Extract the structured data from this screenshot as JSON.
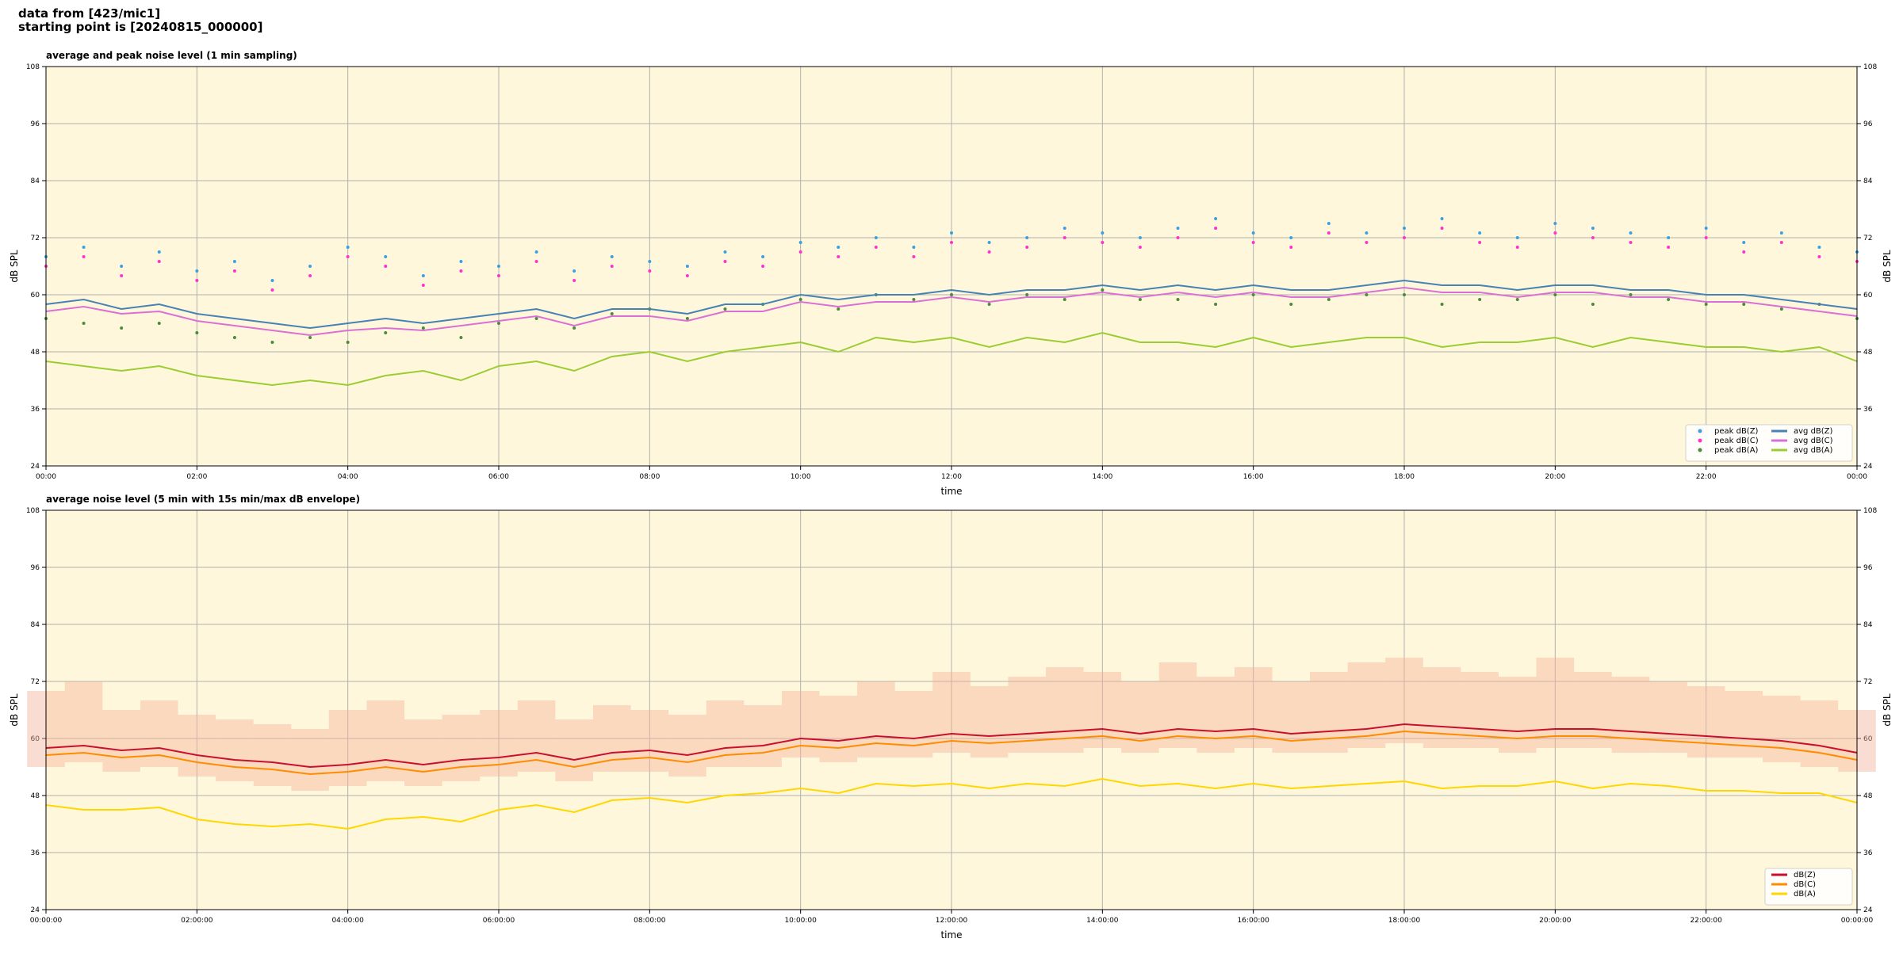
{
  "header": {
    "line1": "data from [423/mic1]",
    "line2": "starting point is [20240815_000000]"
  },
  "chart_data": [
    {
      "type": "line",
      "title": "average and peak noise level (1 min sampling)",
      "xlabel": "time",
      "ylabel": "dB SPL",
      "y2label": "dB SPL",
      "x": [
        0,
        0.5,
        1,
        1.5,
        2,
        2.5,
        3,
        3.5,
        4,
        4.5,
        5,
        5.5,
        6,
        6.5,
        7,
        7.5,
        8,
        8.5,
        9,
        9.5,
        10,
        10.5,
        11,
        11.5,
        12,
        12.5,
        13,
        13.5,
        14,
        14.5,
        15,
        15.5,
        16,
        16.5,
        17,
        17.5,
        18,
        18.5,
        19,
        19.5,
        20,
        20.5,
        21,
        21.5,
        22,
        22.5,
        23,
        23.5,
        24
      ],
      "xlim": [
        0,
        24
      ],
      "xticks": [
        {
          "value": 0,
          "label": "00:00"
        },
        {
          "value": 2,
          "label": "02:00"
        },
        {
          "value": 4,
          "label": "04:00"
        },
        {
          "value": 6,
          "label": "06:00"
        },
        {
          "value": 8,
          "label": "08:00"
        },
        {
          "value": 10,
          "label": "10:00"
        },
        {
          "value": 12,
          "label": "12:00"
        },
        {
          "value": 14,
          "label": "14:00"
        },
        {
          "value": 16,
          "label": "16:00"
        },
        {
          "value": 18,
          "label": "18:00"
        },
        {
          "value": 20,
          "label": "20:00"
        },
        {
          "value": 22,
          "label": "22:00"
        },
        {
          "value": 24,
          "label": "00:00"
        }
      ],
      "ylim": [
        24,
        108
      ],
      "yticks": [
        24,
        36,
        48,
        60,
        72,
        84,
        96,
        108
      ],
      "y2lim": [
        24,
        108
      ],
      "y2ticks": [
        24,
        36,
        48,
        60,
        72,
        84,
        96,
        108
      ],
      "grid": true,
      "legend": "lower right",
      "legend_columns": 2,
      "series": [
        {
          "name": "peak dB(Z)",
          "color": "#3ca0e0",
          "style": "points",
          "values": [
            68,
            70,
            66,
            69,
            65,
            67,
            63,
            66,
            70,
            68,
            64,
            67,
            66,
            69,
            65,
            68,
            67,
            66,
            69,
            68,
            71,
            70,
            72,
            70,
            73,
            71,
            72,
            74,
            73,
            72,
            74,
            76,
            73,
            72,
            75,
            73,
            74,
            76,
            73,
            72,
            75,
            74,
            73,
            72,
            74,
            71,
            73,
            70,
            69
          ]
        },
        {
          "name": "peak dB(C)",
          "color": "#ff33cc",
          "style": "points",
          "values": [
            66,
            68,
            64,
            67,
            63,
            65,
            61,
            64,
            68,
            66,
            62,
            65,
            64,
            67,
            63,
            66,
            65,
            64,
            67,
            66,
            69,
            68,
            70,
            68,
            71,
            69,
            70,
            72,
            71,
            70,
            72,
            74,
            71,
            70,
            73,
            71,
            72,
            74,
            71,
            70,
            73,
            72,
            71,
            70,
            72,
            69,
            71,
            68,
            67
          ]
        },
        {
          "name": "peak dB(A)",
          "color": "#4a8c3a",
          "style": "points",
          "values": [
            55,
            54,
            53,
            54,
            52,
            51,
            50,
            51,
            50,
            52,
            53,
            51,
            54,
            55,
            53,
            56,
            57,
            55,
            57,
            58,
            59,
            57,
            60,
            59,
            60,
            58,
            60,
            59,
            61,
            59,
            59,
            58,
            60,
            58,
            59,
            60,
            60,
            58,
            59,
            59,
            60,
            58,
            60,
            59,
            58,
            58,
            57,
            58,
            55
          ]
        },
        {
          "name": "avg dB(Z)",
          "color": "#4682b4",
          "style": "line",
          "values": [
            58,
            59,
            57,
            58,
            56,
            55,
            54,
            53,
            54,
            55,
            54,
            55,
            56,
            57,
            55,
            57,
            57,
            56,
            58,
            58,
            60,
            59,
            60,
            60,
            61,
            60,
            61,
            61,
            62,
            61,
            62,
            61,
            62,
            61,
            61,
            62,
            63,
            62,
            62,
            61,
            62,
            62,
            61,
            61,
            60,
            60,
            59,
            58,
            57
          ]
        },
        {
          "name": "avg dB(C)",
          "color": "#da70d6",
          "style": "line",
          "values": [
            56.5,
            57.5,
            56,
            56.5,
            54.5,
            53.5,
            52.5,
            51.5,
            52.5,
            53,
            52.5,
            53.5,
            54.5,
            55.5,
            53.5,
            55.5,
            55.5,
            54.5,
            56.5,
            56.5,
            58.5,
            57.5,
            58.5,
            58.5,
            59.5,
            58.5,
            59.5,
            59.5,
            60.5,
            59.5,
            60.5,
            59.5,
            60.5,
            59.5,
            59.5,
            60.5,
            61.5,
            60.5,
            60.5,
            59.5,
            60.5,
            60.5,
            59.5,
            59.5,
            58.5,
            58.5,
            57.5,
            56.5,
            55.5
          ]
        },
        {
          "name": "avg dB(A)",
          "color": "#9acd32",
          "style": "line",
          "values": [
            46,
            45,
            44,
            45,
            43,
            42,
            41,
            42,
            41,
            43,
            44,
            42,
            45,
            46,
            44,
            47,
            48,
            46,
            48,
            49,
            50,
            48,
            51,
            50,
            51,
            49,
            51,
            50,
            52,
            50,
            50,
            49,
            51,
            49,
            50,
            51,
            51,
            49,
            50,
            50,
            51,
            49,
            51,
            50,
            49,
            49,
            48,
            49,
            46
          ]
        }
      ]
    },
    {
      "type": "line",
      "title": "average noise level (5 min with 15s min/max dB envelope)",
      "xlabel": "time",
      "ylabel": "dB SPL",
      "y2label": "dB SPL",
      "x": [
        0,
        0.5,
        1,
        1.5,
        2,
        2.5,
        3,
        3.5,
        4,
        4.5,
        5,
        5.5,
        6,
        6.5,
        7,
        7.5,
        8,
        8.5,
        9,
        9.5,
        10,
        10.5,
        11,
        11.5,
        12,
        12.5,
        13,
        13.5,
        14,
        14.5,
        15,
        15.5,
        16,
        16.5,
        17,
        17.5,
        18,
        18.5,
        19,
        19.5,
        20,
        20.5,
        21,
        21.5,
        22,
        22.5,
        23,
        23.5,
        24
      ],
      "xlim": [
        0,
        24
      ],
      "xticks": [
        {
          "value": 0,
          "label": "00:00:00"
        },
        {
          "value": 2,
          "label": "02:00:00"
        },
        {
          "value": 4,
          "label": "04:00:00"
        },
        {
          "value": 6,
          "label": "06:00:00"
        },
        {
          "value": 8,
          "label": "08:00:00"
        },
        {
          "value": 10,
          "label": "10:00:00"
        },
        {
          "value": 12,
          "label": "12:00:00"
        },
        {
          "value": 14,
          "label": "14:00:00"
        },
        {
          "value": 16,
          "label": "16:00:00"
        },
        {
          "value": 18,
          "label": "18:00:00"
        },
        {
          "value": 20,
          "label": "20:00:00"
        },
        {
          "value": 22,
          "label": "22:00:00"
        },
        {
          "value": 24,
          "label": "00:00:00"
        }
      ],
      "ylim": [
        24,
        108
      ],
      "yticks": [
        24,
        36,
        48,
        60,
        72,
        84,
        96,
        108
      ],
      "y2lim": [
        24,
        108
      ],
      "y2ticks": [
        24,
        36,
        48,
        60,
        72,
        84,
        96,
        108
      ],
      "grid": true,
      "legend": "lower right",
      "legend_columns": 1,
      "envelope": {
        "color": "#f5b49c",
        "upper": [
          70,
          72,
          66,
          68,
          65,
          64,
          63,
          62,
          66,
          68,
          64,
          65,
          66,
          68,
          64,
          67,
          66,
          65,
          68,
          67,
          70,
          69,
          72,
          70,
          74,
          71,
          73,
          75,
          74,
          72,
          76,
          73,
          75,
          72,
          74,
          76,
          77,
          75,
          74,
          73,
          77,
          74,
          73,
          72,
          71,
          70,
          69,
          68,
          66
        ],
        "lower": [
          54,
          55,
          53,
          54,
          52,
          51,
          50,
          49,
          50,
          51,
          50,
          51,
          52,
          53,
          51,
          53,
          53,
          52,
          54,
          54,
          56,
          55,
          56,
          56,
          57,
          56,
          57,
          57,
          58,
          57,
          58,
          57,
          58,
          57,
          57,
          58,
          59,
          58,
          58,
          57,
          58,
          58,
          57,
          57,
          56,
          56,
          55,
          54,
          53
        ]
      },
      "series": [
        {
          "name": "dB(Z)",
          "color": "#c8102e",
          "style": "line",
          "values": [
            58,
            58.5,
            57.5,
            58,
            56.5,
            55.5,
            55,
            54,
            54.5,
            55.5,
            54.5,
            55.5,
            56,
            57,
            55.5,
            57,
            57.5,
            56.5,
            58,
            58.5,
            60,
            59.5,
            60.5,
            60,
            61,
            60.5,
            61,
            61.5,
            62,
            61,
            62,
            61.5,
            62,
            61,
            61.5,
            62,
            63,
            62.5,
            62,
            61.5,
            62,
            62,
            61.5,
            61,
            60.5,
            60,
            59.5,
            58.5,
            57
          ]
        },
        {
          "name": "dB(C)",
          "color": "#ff8c00",
          "style": "line",
          "values": [
            56.5,
            57,
            56,
            56.5,
            55,
            54,
            53.5,
            52.5,
            53,
            54,
            53,
            54,
            54.5,
            55.5,
            54,
            55.5,
            56,
            55,
            56.5,
            57,
            58.5,
            58,
            59,
            58.5,
            59.5,
            59,
            59.5,
            60,
            60.5,
            59.5,
            60.5,
            60,
            60.5,
            59.5,
            60,
            60.5,
            61.5,
            61,
            60.5,
            60,
            60.5,
            60.5,
            60,
            59.5,
            59,
            58.5,
            58,
            57,
            55.5
          ]
        },
        {
          "name": "dB(A)",
          "color": "#ffd700",
          "style": "line",
          "values": [
            46,
            45,
            45,
            45.5,
            43,
            42,
            41.5,
            42,
            41,
            43,
            43.5,
            42.5,
            45,
            46,
            44.5,
            47,
            47.5,
            46.5,
            48,
            48.5,
            49.5,
            48.5,
            50.5,
            50,
            50.5,
            49.5,
            50.5,
            50,
            51.5,
            50,
            50.5,
            49.5,
            50.5,
            49.5,
            50,
            50.5,
            51,
            49.5,
            50,
            50,
            51,
            49.5,
            50.5,
            50,
            49,
            49,
            48.5,
            48.5,
            46.5
          ]
        }
      ]
    }
  ]
}
